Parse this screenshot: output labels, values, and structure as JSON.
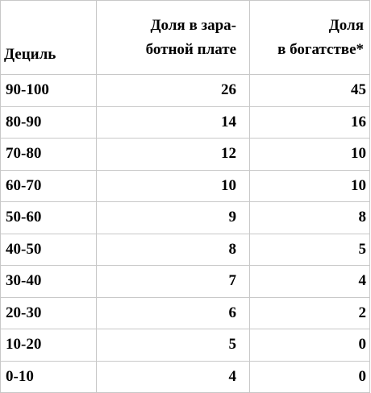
{
  "table": {
    "headers": {
      "decile": "Дециль",
      "wage_line1": "Доля в зара-",
      "wage_line2": "ботной плате",
      "wealth_line1": "Доля",
      "wealth_line2": "в богатстве*"
    },
    "rows": [
      {
        "decile": "90-100",
        "wage": "26",
        "wealth": "45"
      },
      {
        "decile": "80-90",
        "wage": "14",
        "wealth": "16"
      },
      {
        "decile": "70-80",
        "wage": "12",
        "wealth": "10"
      },
      {
        "decile": "60-70",
        "wage": "10",
        "wealth": "10"
      },
      {
        "decile": "50-60",
        "wage": "9",
        "wealth": "8"
      },
      {
        "decile": "40-50",
        "wage": "8",
        "wealth": "5"
      },
      {
        "decile": "30-40",
        "wage": "7",
        "wealth": "4"
      },
      {
        "decile": "20-30",
        "wage": "6",
        "wealth": "2"
      },
      {
        "decile": "10-20",
        "wage": "5",
        "wealth": "0"
      },
      {
        "decile": "0-10",
        "wage": "4",
        "wealth": "0"
      }
    ]
  }
}
